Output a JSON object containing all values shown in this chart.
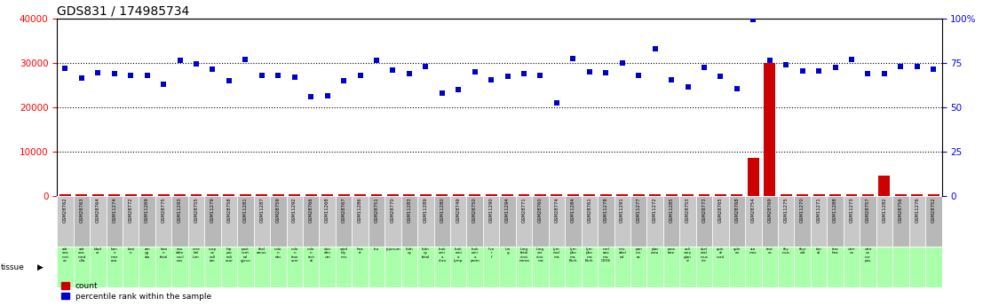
{
  "title": "GDS831 / 174985734",
  "samples": [
    "GSM28762",
    "GSM28763",
    "GSM28764",
    "GSM11274",
    "GSM28772",
    "GSM11269",
    "GSM28775",
    "GSM11293",
    "GSM28755",
    "GSM11279",
    "GSM28758",
    "GSM11281",
    "GSM11287",
    "GSM28759",
    "GSM11292",
    "GSM28766",
    "GSM11268",
    "GSM28767",
    "GSM11286",
    "GSM28751",
    "GSM28770",
    "GSM11283",
    "GSM11289",
    "GSM11280",
    "GSM28749",
    "GSM28750",
    "GSM11290",
    "GSM11294",
    "GSM28771",
    "GSM28760",
    "GSM28774",
    "GSM11284",
    "GSM28761",
    "GSM11278",
    "GSM11291",
    "GSM11277",
    "GSM11272",
    "GSM11285",
    "GSM28753",
    "GSM28773",
    "GSM28765",
    "GSM28768",
    "GSM28754",
    "GSM28769",
    "GSM11275",
    "GSM11270",
    "GSM11271",
    "GSM11288",
    "GSM11273",
    "GSM28757",
    "GSM11282",
    "GSM28756",
    "GSM11276",
    "GSM28752"
  ],
  "tissues": [
    "adr\nena\ncort\nex",
    "adr\nena\nmed\nulla",
    "blad\ner",
    "bon\ne\nmar\nrow",
    "brai\nn",
    "am\nyg\nala",
    "brai\nn\nfetal",
    "cau\ndate\nnucl\neus",
    "cere\nbel\nlum",
    "corp\nus\ncall\nam",
    "hip\npoc\ncali\nosur",
    "post\ncent\nral\ngyrus",
    "thal\namus",
    "colo\nn\ndes",
    "colo\nn\ntran\nsver",
    "colo\nn\nrect\nal",
    "duo\nden\num",
    "epid\nidy\nmis",
    "hea\nrt",
    "leu",
    "jejunum",
    "kidn\ney",
    "kidn\ney\nfetal",
    "leuk\nemi\na\nchro",
    "leuk\nemi\na\nlymp",
    "leuk\nemi\na\nprom",
    "live\nr\nf",
    "lun\ng",
    "lung\nfetal\ncinci\nnoma",
    "lung\ncar\ncino\nma",
    "lym\nnod\nma",
    "lym\npho\nma\nBurk",
    "lym\npho\nma\nBurk",
    "mel\nano\nma\nG336",
    "mis\nabel\ned",
    "pan\ncre\nas",
    "plac\nenta",
    "pros\ntate",
    "sali\nvary\nglan\nd",
    "skel\netal\nmus\ncle",
    "spin\nal\ncord",
    "sple\nen",
    "sto\nmac",
    "test\nes",
    "thy\nmus",
    "thyr\noid",
    "ton\nsil",
    "trac\nhea",
    "uter\nus",
    "uter\nus\ncor\npus"
  ],
  "count": [
    300,
    300,
    300,
    300,
    300,
    300,
    300,
    300,
    300,
    300,
    300,
    300,
    300,
    300,
    300,
    300,
    300,
    300,
    300,
    300,
    300,
    300,
    300,
    300,
    300,
    300,
    300,
    300,
    300,
    300,
    300,
    300,
    300,
    300,
    300,
    300,
    300,
    300,
    300,
    300,
    300,
    300,
    8500,
    30000,
    300,
    300,
    300,
    300,
    300,
    300,
    4500,
    300,
    300,
    300
  ],
  "percentile": [
    28800,
    26500,
    27800,
    27500,
    27200,
    27200,
    25200,
    30500,
    29800,
    28500,
    26000,
    30800,
    27200,
    27100,
    26800,
    22300,
    22600,
    26000,
    27200,
    30500,
    28400,
    27500,
    29100,
    23100,
    24000,
    27900,
    26200,
    27000,
    27600,
    27100,
    21000,
    30900,
    28000,
    27800,
    30000,
    27200,
    33200,
    26100,
    24600,
    29000,
    27000,
    24100,
    39700,
    30500,
    29600,
    28100,
    28100,
    29000,
    30700,
    27600,
    27600,
    29100,
    29200,
    28500
  ],
  "ylim": [
    0,
    40000
  ],
  "left_yticks": [
    0,
    10000,
    20000,
    30000,
    40000
  ],
  "left_yticklabels": [
    "0",
    "10000",
    "20000",
    "30000",
    "40000"
  ],
  "right_yticklabels": [
    "0",
    "25",
    "50",
    "75",
    "100%"
  ],
  "hlines": [
    10000,
    20000,
    30000
  ],
  "bar_color": "#cc0000",
  "scatter_color": "#0000cc",
  "title_fontsize": 10,
  "gsm_bg_even": "#c8c8c8",
  "gsm_bg_odd": "#b8b8b8",
  "tissue_bg": "#aaffaa"
}
